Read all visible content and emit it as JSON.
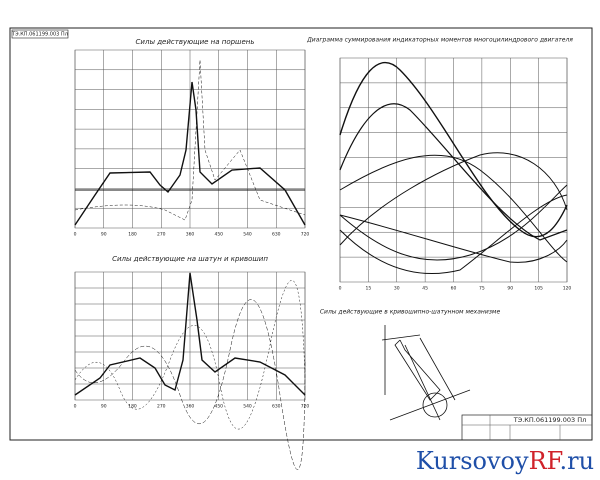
{
  "sheet_code": "ТЭ.КП.061199.003 Пл",
  "charts": [
    {
      "title": "Силы действующие на поршень",
      "x_ticks": [
        "0",
        "90",
        "180",
        "270",
        "360",
        "450",
        "540",
        "630",
        "720"
      ]
    },
    {
      "title": "Силы действующие на шатун и кривошип",
      "x_ticks": [
        "0",
        "90",
        "180",
        "270",
        "360",
        "450",
        "540",
        "630",
        "720"
      ]
    },
    {
      "title": "Диаграмма суммирования индикаторных моментов многоцилиндрового двигателя",
      "x_ticks": [
        "0",
        "15",
        "30",
        "45",
        "60",
        "75",
        "90",
        "105",
        "120"
      ]
    }
  ],
  "mechanism": {
    "title": "Силы действующие в кривошипно-шатунном механизме"
  },
  "stamp": {
    "code": "ТЭ.КП.061199.003 Пл"
  },
  "watermark": {
    "main": "Kursovoy",
    "accent": "RF",
    "suffix": ".ru"
  }
}
